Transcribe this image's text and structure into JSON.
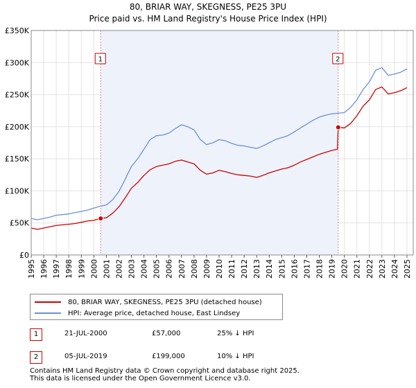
{
  "header": {
    "title": "80, BRIAR WAY, SKEGNESS, PE25 3PU",
    "subtitle": "Price paid vs. HM Land Registry's House Price Index (HPI)"
  },
  "legend": {
    "items": [
      {
        "label": "80, BRIAR WAY, SKEGNESS, PE25 3PU (detached house)",
        "color": "#cc0000"
      },
      {
        "label": "HPI: Average price, detached house, East Lindsey",
        "color": "#6b8fd4"
      }
    ]
  },
  "transactions": [
    {
      "num": "1",
      "date": "21-JUL-2000",
      "price": "£57,000",
      "hpi": "25% ↓ HPI"
    },
    {
      "num": "2",
      "date": "05-JUL-2019",
      "price": "£199,000",
      "hpi": "10% ↓ HPI"
    }
  ],
  "footer": {
    "line1": "Contains HM Land Registry data © Crown copyright and database right 2025.",
    "line2": "This data is licensed under the Open Government Licence v3.0."
  },
  "chart_data": {
    "type": "line",
    "title": "80, BRIAR WAY, SKEGNESS, PE25 3PU",
    "subtitle": "Price paid vs. HM Land Registry's House Price Index (HPI)",
    "xlabel": "",
    "ylabel": "",
    "xlim": [
      1995,
      2025.5
    ],
    "ylim": [
      0,
      350000
    ],
    "yticks": [
      0,
      50000,
      100000,
      150000,
      200000,
      250000,
      300000,
      350000
    ],
    "ytick_labels": [
      "£0",
      "£50K",
      "£100K",
      "£150K",
      "£200K",
      "£250K",
      "£300K",
      "£350K"
    ],
    "xticks": [
      1995,
      1996,
      1997,
      1998,
      1999,
      2000,
      2001,
      2002,
      2003,
      2004,
      2005,
      2006,
      2007,
      2008,
      2009,
      2010,
      2011,
      2012,
      2013,
      2014,
      2015,
      2016,
      2017,
      2018,
      2019,
      2020,
      2021,
      2022,
      2023,
      2024,
      2025
    ],
    "xtick_labels": [
      "1995",
      "1996",
      "1997",
      "1998",
      "1999",
      "2000",
      "2001",
      "2002",
      "2003",
      "2004",
      "2005",
      "2006",
      "2007",
      "2008",
      "2009",
      "2010",
      "2011",
      "2012",
      "2013",
      "2014",
      "2015",
      "2016",
      "2017",
      "2018",
      "2019",
      "2020",
      "2021",
      "2022",
      "2023",
      "2024",
      "2025"
    ],
    "grid": true,
    "shaded_region": [
      2000.55,
      2019.51
    ],
    "series": [
      {
        "name": "HPI: Average price, detached house, East Lindsey",
        "color": "#6b8fd4",
        "x": [
          1995,
          1995.5,
          1996,
          1996.5,
          1997,
          1997.5,
          1998,
          1998.5,
          1999,
          1999.5,
          2000,
          2000.5,
          2001,
          2001.5,
          2002,
          2002.5,
          2003,
          2003.5,
          2004,
          2004.5,
          2005,
          2005.5,
          2006,
          2006.5,
          2007,
          2007.5,
          2008,
          2008.5,
          2009,
          2009.5,
          2010,
          2010.5,
          2011,
          2011.5,
          2012,
          2012.5,
          2013,
          2013.5,
          2014,
          2014.5,
          2015,
          2015.5,
          2016,
          2016.5,
          2017,
          2017.5,
          2018,
          2018.5,
          2019,
          2019.5,
          2020,
          2020.5,
          2021,
          2021.5,
          2022,
          2022.5,
          2023,
          2023.5,
          2024,
          2024.5,
          2025
        ],
        "values": [
          57000,
          55000,
          57000,
          59000,
          62000,
          63000,
          64000,
          66000,
          68000,
          70000,
          73000,
          76000,
          78000,
          86000,
          99000,
          118000,
          138000,
          150000,
          165000,
          180000,
          186000,
          187000,
          190000,
          197000,
          203000,
          200000,
          195000,
          180000,
          172000,
          175000,
          180000,
          178000,
          174000,
          171000,
          170000,
          168000,
          166000,
          170000,
          175000,
          180000,
          183000,
          186000,
          192000,
          198000,
          204000,
          210000,
          215000,
          218000,
          220000,
          221000,
          222000,
          230000,
          242000,
          258000,
          270000,
          288000,
          292000,
          280000,
          282000,
          285000,
          290000
        ]
      },
      {
        "name": "80, BRIAR WAY, SKEGNESS, PE25 3PU (detached house)",
        "color": "#cc0000",
        "x": [
          1995,
          1995.5,
          1996,
          1996.5,
          1997,
          1997.5,
          1998,
          1998.5,
          1999,
          1999.5,
          2000,
          2000.55,
          2001,
          2001.5,
          2002,
          2002.5,
          2003,
          2003.5,
          2004,
          2004.5,
          2005,
          2005.5,
          2006,
          2006.5,
          2007,
          2007.5,
          2008,
          2008.5,
          2009,
          2009.5,
          2010,
          2010.5,
          2011,
          2011.5,
          2012,
          2012.5,
          2013,
          2013.5,
          2014,
          2014.5,
          2015,
          2015.5,
          2016,
          2016.5,
          2017,
          2017.5,
          2018,
          2018.5,
          2019,
          2019.45,
          2019.51,
          2020,
          2020.5,
          2021,
          2021.5,
          2022,
          2022.5,
          2023,
          2023.5,
          2024,
          2024.5,
          2025
        ],
        "values": [
          42000,
          40000,
          42000,
          44000,
          46000,
          47000,
          48000,
          49000,
          51000,
          53000,
          54000,
          57000,
          58000,
          65000,
          75000,
          89000,
          104000,
          113000,
          124000,
          133000,
          138000,
          140000,
          142000,
          146000,
          148000,
          145000,
          142000,
          132000,
          126000,
          128000,
          132000,
          130000,
          127000,
          125000,
          124000,
          123000,
          121000,
          124000,
          128000,
          131000,
          134000,
          136000,
          140000,
          145000,
          149000,
          153000,
          157000,
          160000,
          163000,
          165000,
          199000,
          198000,
          205000,
          217000,
          232000,
          242000,
          258000,
          262000,
          251000,
          253000,
          256000,
          261000
        ]
      }
    ],
    "markers": [
      {
        "label": "1",
        "x": 2000.55,
        "y": 57000
      },
      {
        "label": "2",
        "x": 2019.51,
        "y": 199000
      }
    ]
  }
}
